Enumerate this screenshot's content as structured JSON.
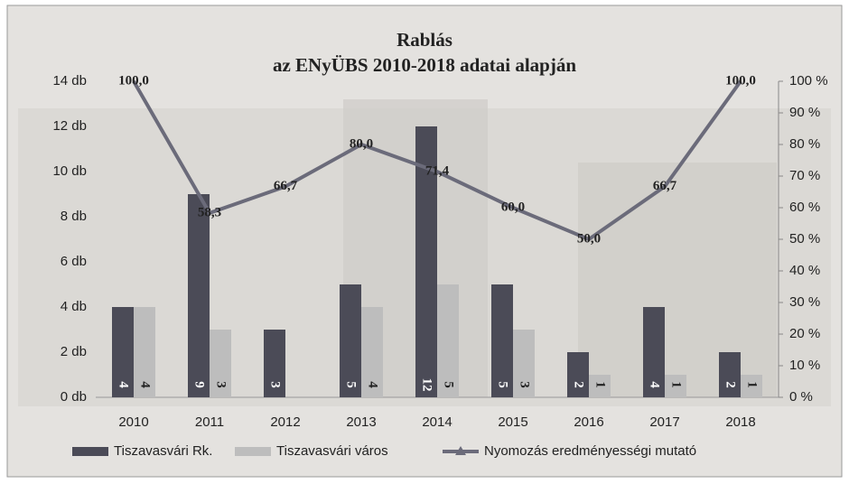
{
  "chart_data": {
    "type": "bar-line",
    "title": "Rablás",
    "subtitle": "az ENyÜBS 2010-2018 adatai alapján",
    "categories": [
      "2010",
      "2011",
      "2012",
      "2013",
      "2014",
      "2015",
      "2016",
      "2017",
      "2018"
    ],
    "series": [
      {
        "name": "Tiszavasvári Rk.",
        "type": "bar",
        "color": "#4b4b57",
        "values": [
          4,
          9,
          3,
          5,
          12,
          5,
          2,
          4,
          2
        ]
      },
      {
        "name": "Tiszavasvári város",
        "type": "bar",
        "color": "#bdbdbd",
        "values": [
          4,
          3,
          null,
          4,
          5,
          3,
          1,
          1,
          1
        ]
      },
      {
        "name": "Nyomozás eredményességi mutató",
        "type": "line",
        "axis": "y2",
        "color": "#6b6b7a",
        "values": [
          100.0,
          58.3,
          66.7,
          80.0,
          71.4,
          60.0,
          50.0,
          66.7,
          100.0
        ],
        "value_labels": [
          "100,0",
          "58,3",
          "66,7",
          "80,0",
          "71,4",
          "60,0",
          "50,0",
          "66,7",
          "100,0"
        ]
      }
    ],
    "ylim": [
      0,
      14
    ],
    "yticks": [
      {
        "value": 0,
        "label": "0 db"
      },
      {
        "value": 2,
        "label": "2 db"
      },
      {
        "value": 4,
        "label": "4 db"
      },
      {
        "value": 6,
        "label": "6 db"
      },
      {
        "value": 8,
        "label": "8 db"
      },
      {
        "value": 10,
        "label": "10 db"
      },
      {
        "value": 12,
        "label": "12 db"
      },
      {
        "value": 14,
        "label": "14 db"
      }
    ],
    "y2lim": [
      0,
      100
    ],
    "y2ticks": [
      {
        "value": 0,
        "label": "0 %"
      },
      {
        "value": 10,
        "label": "10 %"
      },
      {
        "value": 20,
        "label": "20 %"
      },
      {
        "value": 30,
        "label": "30 %"
      },
      {
        "value": 40,
        "label": "40 %"
      },
      {
        "value": 50,
        "label": "50 %"
      },
      {
        "value": 60,
        "label": "60 %"
      },
      {
        "value": 70,
        "label": "70 %"
      },
      {
        "value": 80,
        "label": "80 %"
      },
      {
        "value": 90,
        "label": "90 %"
      },
      {
        "value": 100,
        "label": "100 %"
      }
    ],
    "grid": false,
    "legend": "bottom"
  }
}
